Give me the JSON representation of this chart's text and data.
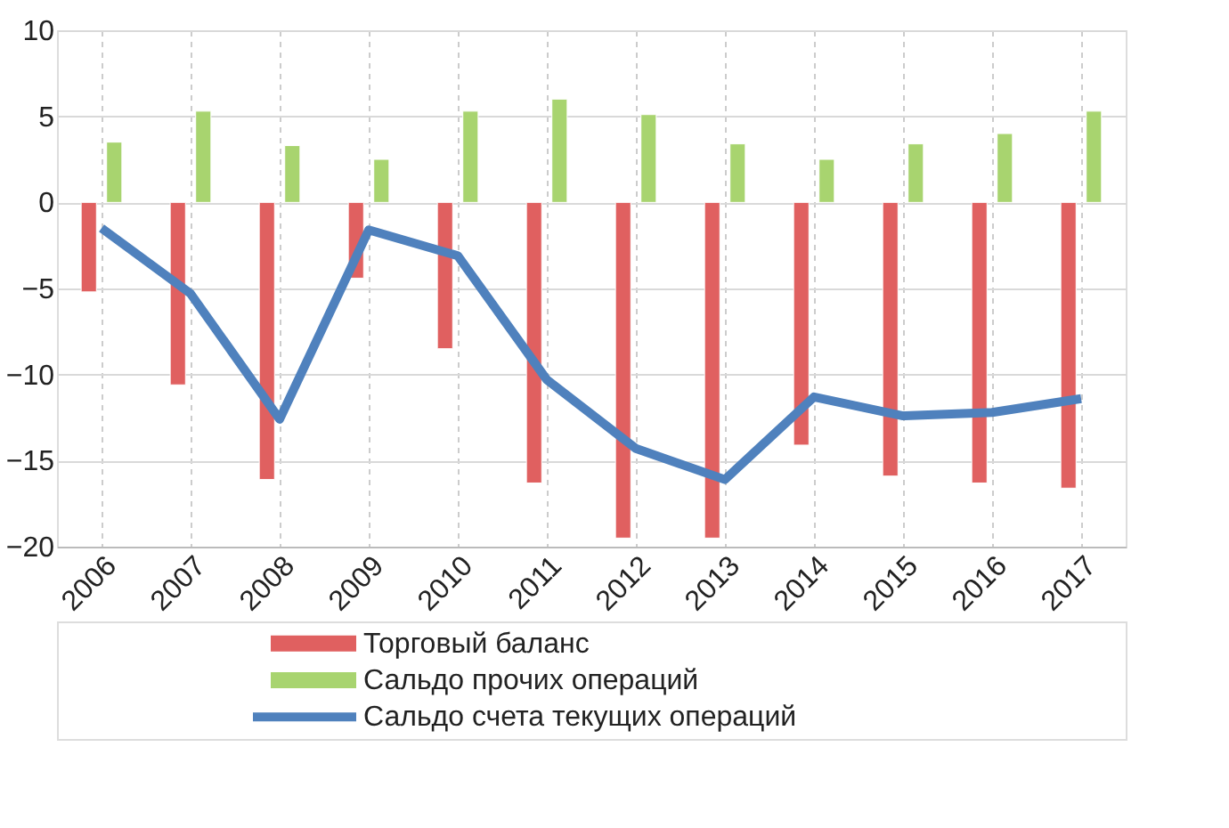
{
  "chart_data": {
    "type": "bar",
    "categories": [
      "2006",
      "2007",
      "2008",
      "2009",
      "2010",
      "2011",
      "2012",
      "2013",
      "2014",
      "2015",
      "2016",
      "2017"
    ],
    "series": [
      {
        "name": "Торговый баланс",
        "color": "#e06060",
        "values": [
          -5.2,
          -10.6,
          -16.1,
          -4.4,
          -8.5,
          -16.3,
          -19.5,
          -19.5,
          -14.1,
          -15.9,
          -16.3,
          -16.6
        ]
      },
      {
        "name": "Сальдо прочих операций",
        "color": "#a8d46f",
        "values": [
          3.5,
          5.3,
          3.3,
          2.5,
          5.3,
          6.0,
          5.1,
          3.4,
          2.5,
          3.4,
          4.0,
          5.3
        ]
      },
      {
        "name": "Сальдо счета текущих операций",
        "type": "line",
        "color": "#4f81bd",
        "values": [
          -1.5,
          -5.3,
          -12.6,
          -1.6,
          -3.1,
          -10.3,
          -14.3,
          -16.1,
          -11.3,
          -12.4,
          -12.2,
          -11.4
        ]
      }
    ],
    "ylim": [
      -20,
      10
    ],
    "yticks": [
      -20,
      -15,
      -10,
      -5,
      0,
      5,
      10
    ],
    "grid": true,
    "legend": "bottom",
    "line_style": "solid",
    "marker": "none"
  }
}
